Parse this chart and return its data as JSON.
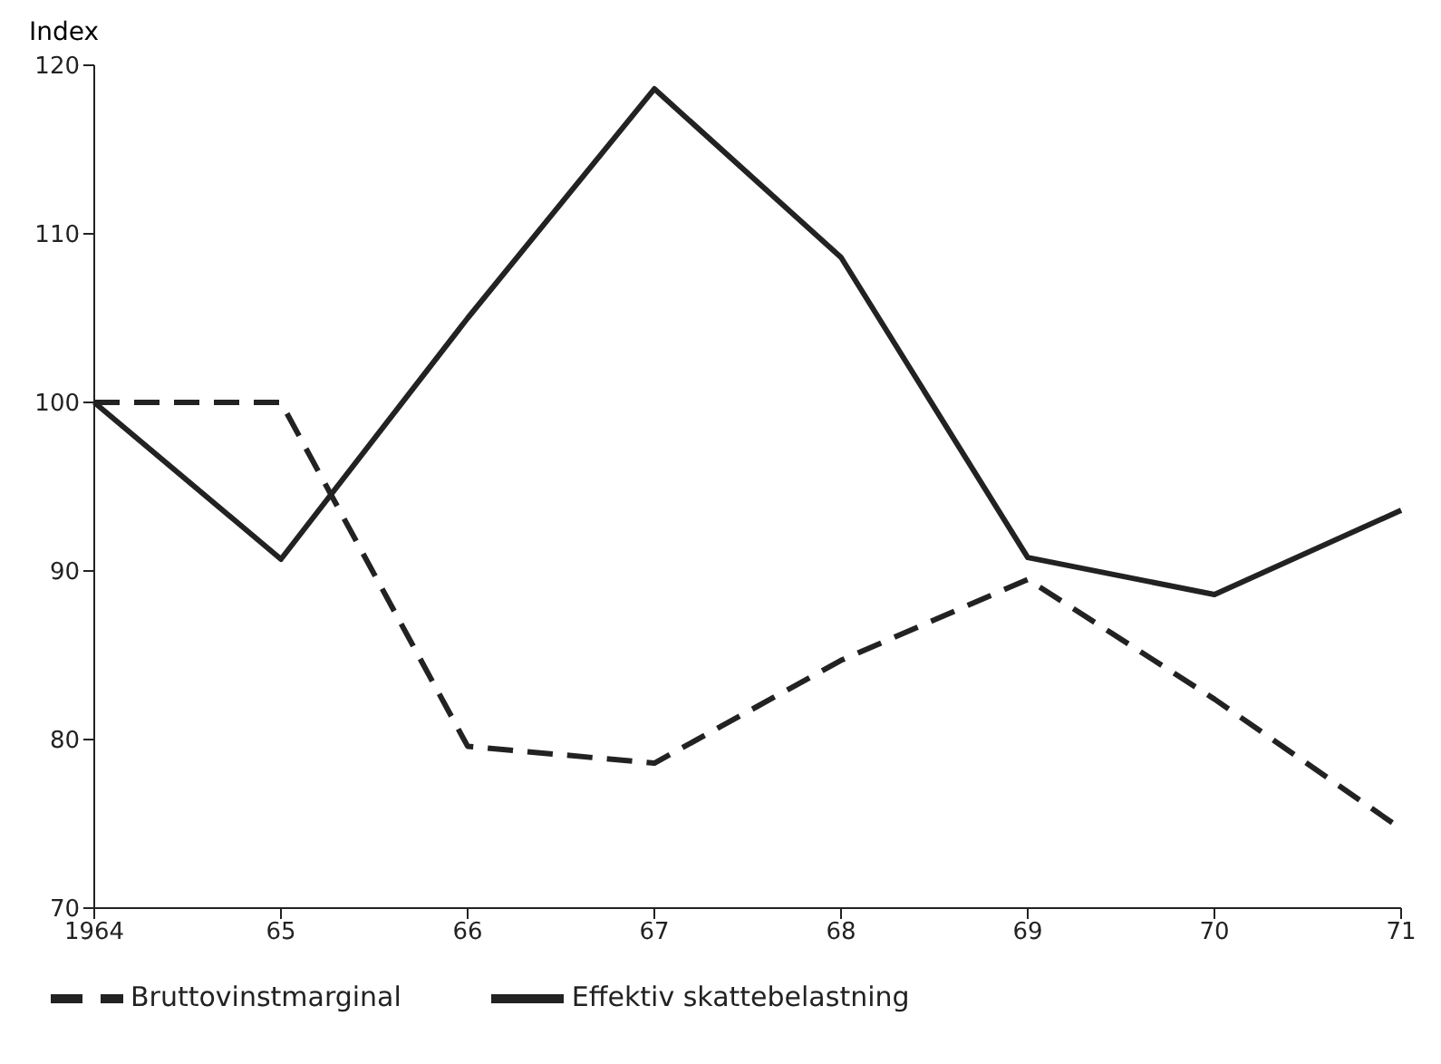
{
  "chart_data": {
    "type": "line",
    "ylabel": "Index",
    "categories": [
      "1964",
      "65",
      "66",
      "67",
      "68",
      "69",
      "70",
      "71"
    ],
    "series": [
      {
        "name": "Effektiv skattebelastning",
        "color": "#222222",
        "line_style": "solid",
        "values": [
          100,
          90.7,
          105,
          118.6,
          108.6,
          90.8,
          88.6,
          93.6
        ]
      },
      {
        "name": "Bruttovinstmarginal",
        "color": "#222222",
        "line_style": "dashed",
        "values": [
          100,
          100,
          79.6,
          78.6,
          84.7,
          89.5,
          82.4,
          74.7
        ]
      }
    ],
    "ylim": [
      70,
      120
    ],
    "yticks": [
      70,
      80,
      90,
      100,
      110,
      120
    ],
    "legend": "bottom",
    "marker": "none"
  }
}
